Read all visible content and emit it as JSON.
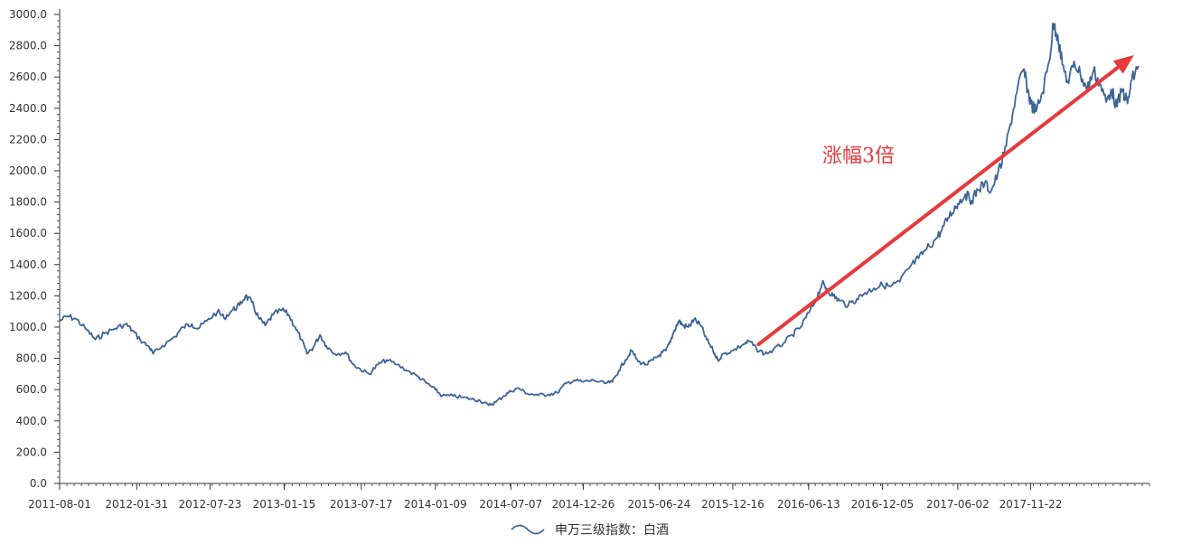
{
  "chart_data": {
    "type": "line",
    "title": "",
    "xlabel": "",
    "ylabel": "",
    "ylim": [
      0,
      3000
    ],
    "y_ticks": [
      0,
      200,
      400,
      600,
      800,
      1000,
      1200,
      1400,
      1600,
      1800,
      2000,
      2200,
      2400,
      2600,
      2800,
      3000
    ],
    "y_tick_labels": [
      "0.0",
      "200.0",
      "400.0",
      "600.0",
      "800.0",
      "1000.0",
      "1200.0",
      "1400.0",
      "1600.0",
      "1800.0",
      "2000.0",
      "2200.0",
      "2400.0",
      "2600.0",
      "2800.0",
      "3000.0"
    ],
    "x_tick_labels": [
      "2011-08-01",
      "2012-01-31",
      "2012-07-23",
      "2013-01-15",
      "2013-07-17",
      "2014-01-09",
      "2014-07-07",
      "2014-12-26",
      "2015-06-24",
      "2015-12-16",
      "2016-06-13",
      "2016-12-05",
      "2017-06-02",
      "2017-11-22"
    ],
    "xlim": [
      "2011-08-01",
      "2018-08-31"
    ],
    "grid": false,
    "legend_position": "bottom-center",
    "series": [
      {
        "name": "申万三级指数：白酒",
        "color": "#3d6496",
        "points": [
          [
            "2011-08-01",
            1040
          ],
          [
            "2011-08-20",
            1070
          ],
          [
            "2011-09-10",
            1050
          ],
          [
            "2011-10-05",
            980
          ],
          [
            "2011-10-25",
            920
          ],
          [
            "2011-11-15",
            960
          ],
          [
            "2011-12-10",
            990
          ],
          [
            "2012-01-05",
            1020
          ],
          [
            "2012-01-20",
            980
          ],
          [
            "2012-02-08",
            920
          ],
          [
            "2012-03-01",
            870
          ],
          [
            "2012-03-10",
            830
          ],
          [
            "2012-04-01",
            880
          ],
          [
            "2012-05-01",
            940
          ],
          [
            "2012-05-20",
            1000
          ],
          [
            "2012-06-10",
            1020
          ],
          [
            "2012-06-25",
            990
          ],
          [
            "2012-07-15",
            1040
          ],
          [
            "2012-08-10",
            1100
          ],
          [
            "2012-08-25",
            1060
          ],
          [
            "2012-09-15",
            1110
          ],
          [
            "2012-10-01",
            1140
          ],
          [
            "2012-10-15",
            1200
          ],
          [
            "2012-10-30",
            1160
          ],
          [
            "2012-11-15",
            1060
          ],
          [
            "2012-12-01",
            1010
          ],
          [
            "2012-12-20",
            1080
          ],
          [
            "2013-01-10",
            1110
          ],
          [
            "2013-01-25",
            1080
          ],
          [
            "2013-02-10",
            1000
          ],
          [
            "2013-02-25",
            920
          ],
          [
            "2013-03-10",
            830
          ],
          [
            "2013-03-25",
            870
          ],
          [
            "2013-04-10",
            950
          ],
          [
            "2013-04-25",
            880
          ],
          [
            "2013-05-15",
            830
          ],
          [
            "2013-06-10",
            840
          ],
          [
            "2013-06-28",
            760
          ],
          [
            "2013-07-15",
            730
          ],
          [
            "2013-08-05",
            700
          ],
          [
            "2013-08-25",
            760
          ],
          [
            "2013-09-15",
            790
          ],
          [
            "2013-10-10",
            760
          ],
          [
            "2013-11-05",
            720
          ],
          [
            "2013-12-01",
            680
          ],
          [
            "2013-12-20",
            640
          ],
          [
            "2014-01-09",
            600
          ],
          [
            "2014-01-25",
            560
          ],
          [
            "2014-02-20",
            560
          ],
          [
            "2014-03-15",
            550
          ],
          [
            "2014-04-05",
            540
          ],
          [
            "2014-04-25",
            530
          ],
          [
            "2014-05-15",
            500
          ],
          [
            "2014-06-01",
            520
          ],
          [
            "2014-06-20",
            560
          ],
          [
            "2014-07-07",
            590
          ],
          [
            "2014-07-25",
            610
          ],
          [
            "2014-08-15",
            575
          ],
          [
            "2014-09-10",
            565
          ],
          [
            "2014-10-05",
            570
          ],
          [
            "2014-10-25",
            580
          ],
          [
            "2014-11-15",
            640
          ],
          [
            "2014-12-05",
            660
          ],
          [
            "2014-12-26",
            650
          ],
          [
            "2015-01-20",
            660
          ],
          [
            "2015-02-15",
            640
          ],
          [
            "2015-03-05",
            650
          ],
          [
            "2015-03-20",
            720
          ],
          [
            "2015-04-05",
            790
          ],
          [
            "2015-04-20",
            850
          ],
          [
            "2015-05-05",
            780
          ],
          [
            "2015-05-25",
            760
          ],
          [
            "2015-06-10",
            790
          ],
          [
            "2015-06-24",
            820
          ],
          [
            "2015-07-10",
            850
          ],
          [
            "2015-07-20",
            900
          ],
          [
            "2015-07-30",
            980
          ],
          [
            "2015-08-10",
            1040
          ],
          [
            "2015-08-20",
            1010
          ],
          [
            "2015-09-01",
            1000
          ],
          [
            "2015-09-15",
            1050
          ],
          [
            "2015-10-01",
            1010
          ],
          [
            "2015-10-15",
            920
          ],
          [
            "2015-10-30",
            850
          ],
          [
            "2015-11-10",
            790
          ],
          [
            "2015-11-25",
            830
          ],
          [
            "2015-12-16",
            850
          ],
          [
            "2016-01-10",
            890
          ],
          [
            "2016-01-25",
            910
          ],
          [
            "2016-02-10",
            860
          ],
          [
            "2016-03-01",
            830
          ],
          [
            "2016-03-20",
            850
          ],
          [
            "2016-04-15",
            900
          ],
          [
            "2016-05-05",
            950
          ],
          [
            "2016-05-25",
            1000
          ],
          [
            "2016-06-13",
            1090
          ],
          [
            "2016-07-01",
            1180
          ],
          [
            "2016-07-15",
            1280
          ],
          [
            "2016-07-25",
            1250
          ],
          [
            "2016-08-10",
            1200
          ],
          [
            "2016-08-25",
            1170
          ],
          [
            "2016-09-15",
            1140
          ],
          [
            "2016-10-05",
            1180
          ],
          [
            "2016-10-25",
            1220
          ],
          [
            "2016-11-15",
            1250
          ],
          [
            "2016-12-05",
            1270
          ],
          [
            "2016-12-25",
            1260
          ],
          [
            "2017-01-15",
            1290
          ],
          [
            "2017-02-10",
            1390
          ],
          [
            "2017-03-01",
            1440
          ],
          [
            "2017-03-20",
            1500
          ],
          [
            "2017-04-10",
            1560
          ],
          [
            "2017-04-25",
            1620
          ],
          [
            "2017-05-10",
            1700
          ],
          [
            "2017-05-25",
            1760
          ],
          [
            "2017-06-02",
            1790
          ],
          [
            "2017-06-20",
            1850
          ],
          [
            "2017-07-05",
            1810
          ],
          [
            "2017-07-20",
            1880
          ],
          [
            "2017-08-05",
            1920
          ],
          [
            "2017-08-20",
            1870
          ],
          [
            "2017-09-05",
            1980
          ],
          [
            "2017-09-20",
            2100
          ],
          [
            "2017-10-05",
            2300
          ],
          [
            "2017-10-20",
            2500
          ],
          [
            "2017-11-05",
            2650
          ],
          [
            "2017-11-15",
            2520
          ],
          [
            "2017-11-22",
            2430
          ],
          [
            "2017-12-05",
            2380
          ],
          [
            "2017-12-20",
            2500
          ],
          [
            "2018-01-05",
            2700
          ],
          [
            "2018-01-15",
            2940
          ],
          [
            "2018-01-25",
            2870
          ],
          [
            "2018-02-05",
            2680
          ],
          [
            "2018-02-20",
            2560
          ],
          [
            "2018-03-05",
            2700
          ],
          [
            "2018-03-20",
            2620
          ],
          [
            "2018-04-05",
            2520
          ],
          [
            "2018-04-20",
            2640
          ],
          [
            "2018-05-05",
            2560
          ],
          [
            "2018-05-20",
            2440
          ],
          [
            "2018-06-01",
            2520
          ],
          [
            "2018-06-15",
            2410
          ],
          [
            "2018-06-28",
            2520
          ],
          [
            "2018-07-10",
            2430
          ],
          [
            "2018-07-20",
            2580
          ],
          [
            "2018-08-05",
            2670
          ]
        ]
      }
    ],
    "annotations": [
      {
        "text": "涨幅3倍",
        "color": "#e8393b",
        "arrow_from": [
          "2016-02-15",
          890
        ],
        "arrow_to": [
          "2018-07-25",
          2740
        ]
      }
    ]
  }
}
